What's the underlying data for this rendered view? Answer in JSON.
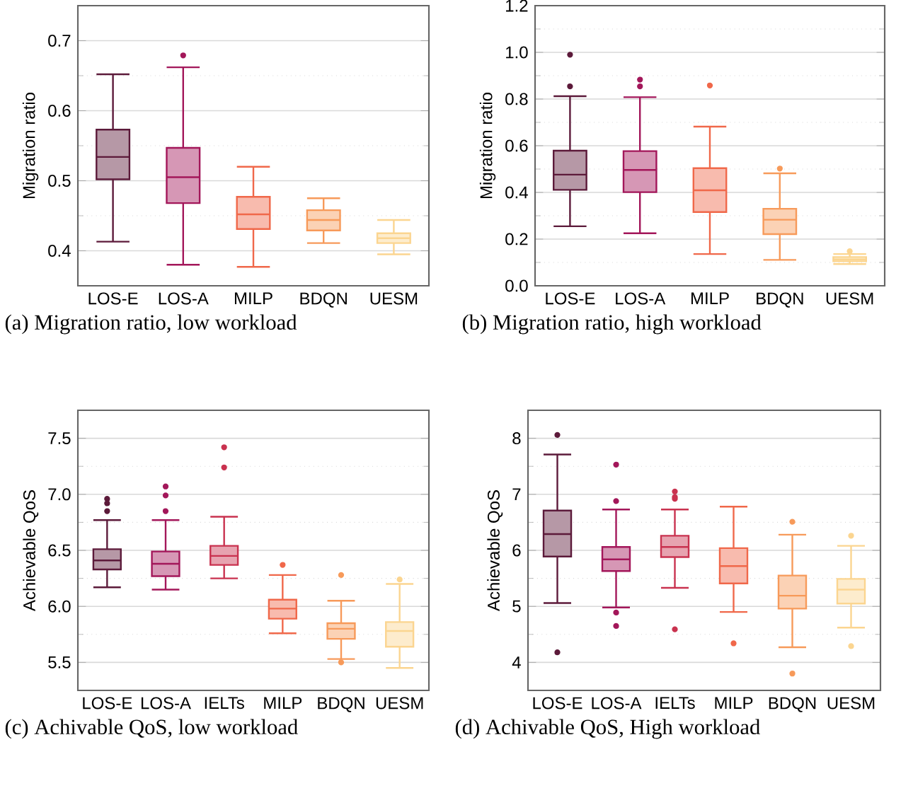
{
  "chart_data": [
    {
      "type": "box",
      "categories": [
        "LOS-E",
        "LOS-A",
        "MILP",
        "BDQN",
        "UESM"
      ],
      "colors": [
        "#5c1a3a",
        "#a3175a",
        "#f0684a",
        "#f79a5a",
        "#fbd590"
      ],
      "ylabel": "Migration ratio",
      "ylim": [
        0.35,
        0.75
      ],
      "yticks": [
        0.4,
        0.5,
        0.6,
        0.7
      ],
      "grid": "y",
      "annotations": [
        "(a) Migration ratio, low workload"
      ],
      "boxes": [
        {
          "low": 0.413,
          "q1": 0.502,
          "median": 0.534,
          "q3": 0.573,
          "high": 0.652
        },
        {
          "low": 0.38,
          "q1": 0.468,
          "median": 0.505,
          "q3": 0.547,
          "high": 0.662,
          "outliers": [
            0.679
          ]
        },
        {
          "low": 0.377,
          "q1": 0.431,
          "median": 0.452,
          "q3": 0.477,
          "high": 0.52
        },
        {
          "low": 0.411,
          "q1": 0.429,
          "median": 0.444,
          "q3": 0.458,
          "high": 0.475
        },
        {
          "low": 0.395,
          "q1": 0.411,
          "median": 0.418,
          "q3": 0.425,
          "high": 0.444
        }
      ]
    },
    {
      "type": "box",
      "categories": [
        "LOS-E",
        "LOS-A",
        "MILP",
        "BDQN",
        "UESM"
      ],
      "colors": [
        "#5c1a3a",
        "#a3175a",
        "#f0684a",
        "#f79a5a",
        "#fbd590"
      ],
      "ylabel": "Migration ratio",
      "ylim": [
        0,
        1.2
      ],
      "yticks": [
        {
          "value": 0,
          "label": "0.0"
        },
        0.2,
        0.4,
        0.6,
        0.8,
        {
          "value": 1,
          "label": "1.0"
        },
        1.2
      ],
      "grid": "y",
      "annotations": [
        "(b) Migration ratio, high workload"
      ],
      "boxes": [
        {
          "low": 0.255,
          "q1": 0.411,
          "median": 0.476,
          "q3": 0.579,
          "high": 0.812,
          "outliers": [
            0.854,
            0.99
          ]
        },
        {
          "low": 0.225,
          "q1": 0.401,
          "median": 0.496,
          "q3": 0.577,
          "high": 0.808,
          "outliers": [
            0.854,
            0.883
          ]
        },
        {
          "low": 0.136,
          "q1": 0.316,
          "median": 0.409,
          "q3": 0.504,
          "high": 0.682,
          "outliers": [
            0.858
          ]
        },
        {
          "low": 0.111,
          "q1": 0.221,
          "median": 0.283,
          "q3": 0.33,
          "high": 0.482,
          "outliers": [
            0.502
          ]
        },
        {
          "low": 0.093,
          "q1": 0.105,
          "median": 0.113,
          "q3": 0.123,
          "high": 0.136,
          "outliers": [
            0.148
          ]
        }
      ]
    },
    {
      "type": "box",
      "categories": [
        "LOS-E",
        "LOS-A",
        "IELTs",
        "MILP",
        "BDQN",
        "UESM"
      ],
      "colors": [
        "#5c1a3a",
        "#a3175a",
        "#c9324f",
        "#f0684a",
        "#f79a5a",
        "#fbd590"
      ],
      "ylabel": "Achievable QoS",
      "ylim": [
        5.25,
        7.75
      ],
      "yticks": [
        5.5,
        {
          "value": 6,
          "label": "6.0"
        },
        6.5,
        {
          "value": 7,
          "label": "7.0"
        },
        7.5
      ],
      "grid": "y",
      "annotations": [
        "(c) Achivable QoS, low workload"
      ],
      "boxes": [
        {
          "low": 6.17,
          "q1": 6.33,
          "median": 6.41,
          "q3": 6.51,
          "high": 6.77,
          "outliers": [
            6.85,
            6.92,
            6.96
          ]
        },
        {
          "low": 6.15,
          "q1": 6.27,
          "median": 6.38,
          "q3": 6.49,
          "high": 6.77,
          "outliers": [
            6.85,
            6.99,
            7.07
          ]
        },
        {
          "low": 6.25,
          "q1": 6.37,
          "median": 6.45,
          "q3": 6.54,
          "high": 6.8,
          "outliers": [
            7.24,
            7.42
          ]
        },
        {
          "low": 5.76,
          "q1": 5.89,
          "median": 5.98,
          "q3": 6.06,
          "high": 6.28,
          "outliers": [
            6.37
          ]
        },
        {
          "low": 5.53,
          "q1": 5.71,
          "median": 5.8,
          "q3": 5.85,
          "high": 6.05,
          "outliers": [
            5.5,
            6.28
          ]
        },
        {
          "low": 5.45,
          "q1": 5.64,
          "median": 5.78,
          "q3": 5.86,
          "high": 6.2,
          "outliers": [
            6.24
          ]
        }
      ]
    },
    {
      "type": "box",
      "categories": [
        "LOS-E",
        "LOS-A",
        "IELTs",
        "MILP",
        "BDQN",
        "UESM"
      ],
      "colors": [
        "#5c1a3a",
        "#a3175a",
        "#c9324f",
        "#f0684a",
        "#f79a5a",
        "#fbd590"
      ],
      "ylabel": "Achievable QoS",
      "ylim": [
        3.5,
        8.5
      ],
      "yticks": [
        4,
        5,
        6,
        7,
        8
      ],
      "grid": "y",
      "annotations": [
        "(d) Achivable QoS, High workload"
      ],
      "boxes": [
        {
          "low": 5.06,
          "q1": 5.89,
          "median": 6.29,
          "q3": 6.71,
          "high": 7.71,
          "outliers": [
            4.18,
            8.06
          ]
        },
        {
          "low": 4.98,
          "q1": 5.63,
          "median": 5.84,
          "q3": 6.06,
          "high": 6.73,
          "outliers": [
            4.65,
            4.89,
            6.88,
            7.53
          ]
        },
        {
          "low": 5.33,
          "q1": 5.88,
          "median": 6.06,
          "q3": 6.26,
          "high": 6.73,
          "outliers": [
            4.59,
            6.92,
            6.95,
            7.05
          ]
        },
        {
          "low": 4.9,
          "q1": 5.41,
          "median": 5.72,
          "q3": 6.04,
          "high": 6.78,
          "outliers": [
            4.34
          ]
        },
        {
          "low": 4.27,
          "q1": 4.96,
          "median": 5.19,
          "q3": 5.55,
          "high": 6.28,
          "outliers": [
            3.8,
            6.51
          ]
        },
        {
          "low": 4.62,
          "q1": 5.05,
          "median": 5.3,
          "q3": 5.49,
          "high": 6.08,
          "outliers": [
            4.29,
            6.26
          ]
        }
      ]
    }
  ]
}
